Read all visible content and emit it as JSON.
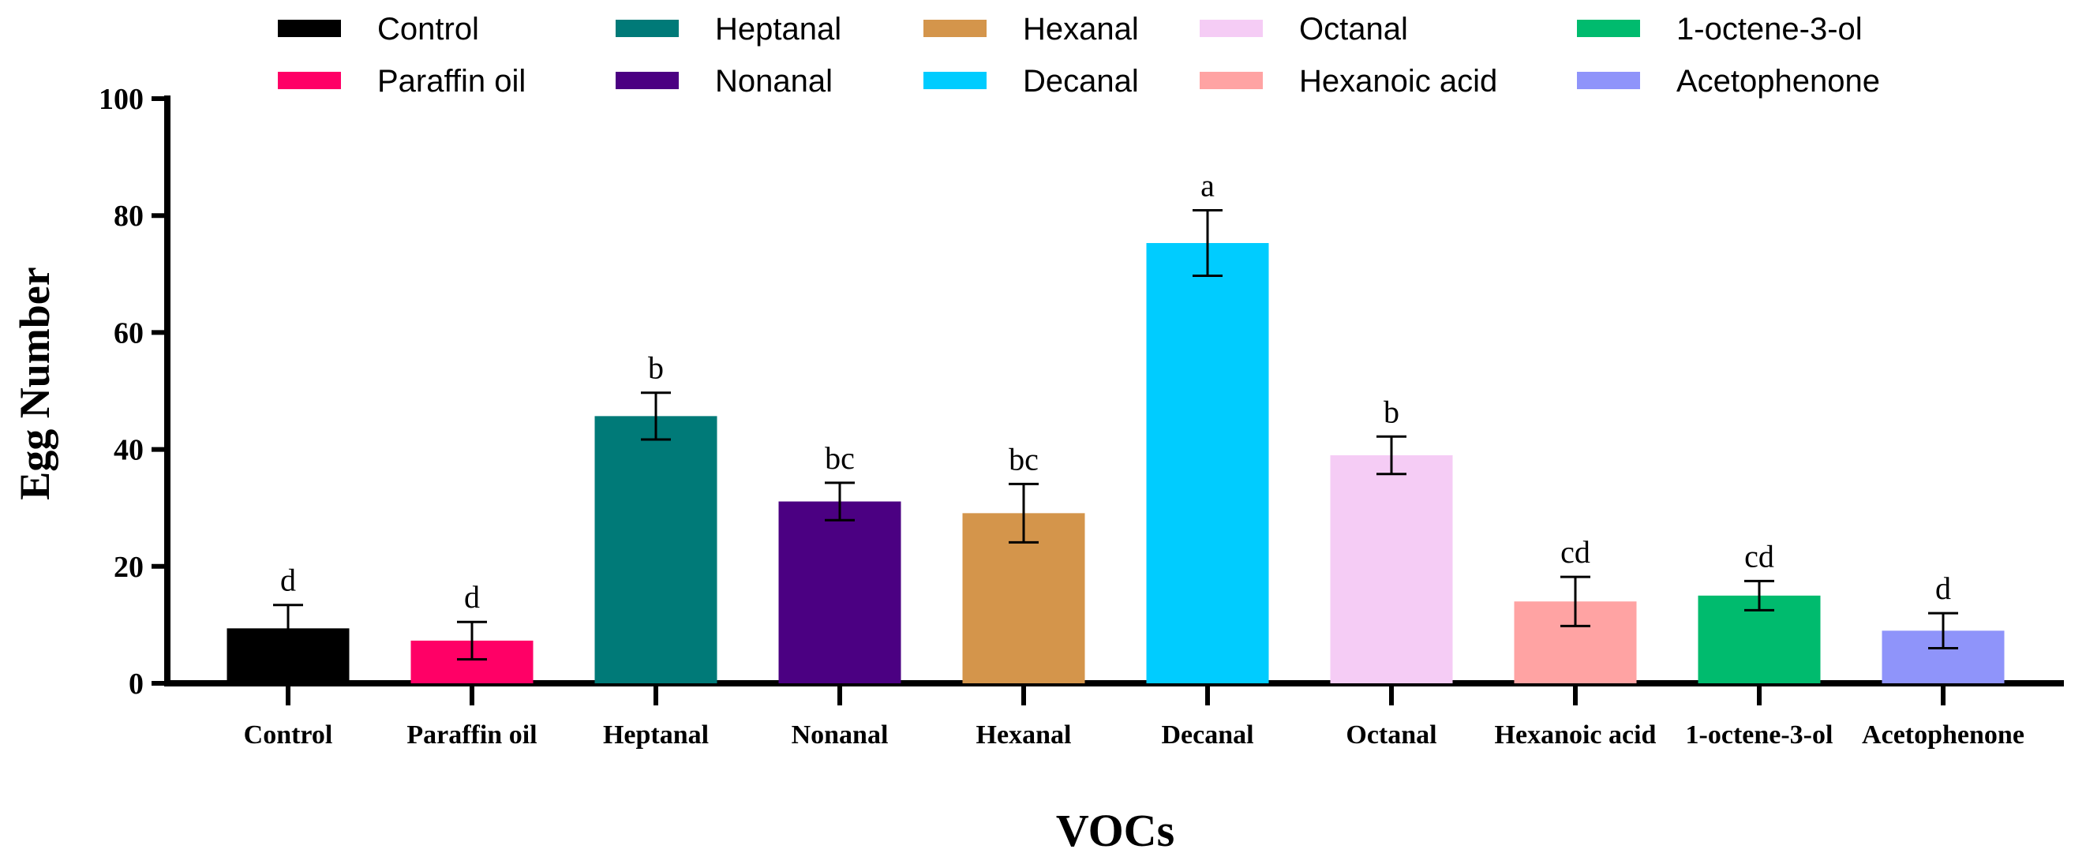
{
  "chart_data": {
    "type": "bar",
    "title": "",
    "xlabel": "VOCs",
    "ylabel": "Egg Number",
    "ylim": [
      0,
      100
    ],
    "yticks": [
      0,
      20,
      40,
      60,
      80,
      100
    ],
    "categories": [
      "Control",
      "Paraffin oil",
      "Heptanal",
      "Nonanal",
      "Hexanal",
      "Decanal",
      "Octanal",
      "Hexanoic acid",
      "1-octene-3-ol",
      "Acetophenone"
    ],
    "values": [
      9.4,
      7.3,
      45.7,
      31.1,
      29.1,
      75.3,
      39.0,
      14.0,
      15.0,
      9.0
    ],
    "errors": [
      4.0,
      3.2,
      4.0,
      3.2,
      5.0,
      5.6,
      3.2,
      4.2,
      2.5,
      3.0
    ],
    "significance": [
      "d",
      "d",
      "b",
      "bc",
      "bc",
      "a",
      "b",
      "cd",
      "cd",
      "d"
    ],
    "colors": [
      "#000000",
      "#ff0066",
      "#007a78",
      "#4b0082",
      "#d4954b",
      "#00ccff",
      "#f5ccf5",
      "#ffa3a3",
      "#00bb6e",
      "#8f94fa"
    ],
    "legend": {
      "placement": "top",
      "entries": [
        "Control",
        "Heptanal",
        "Hexanal",
        "Octanal",
        "1-octene-3-ol",
        "Paraffin oil",
        "Nonanal",
        "Decanal",
        "Hexanoic acid",
        "Acetophenone"
      ]
    }
  }
}
